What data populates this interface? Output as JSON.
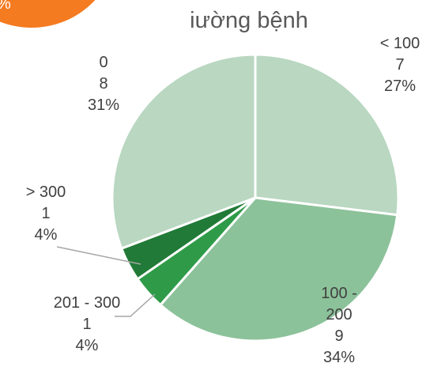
{
  "fragment_text": "%",
  "chart_data": {
    "type": "pie",
    "title": "iường bệnh",
    "categories": [
      "< 100",
      "100 - 200",
      "201 - 300",
      "> 300",
      "0"
    ],
    "values": [
      7,
      9,
      1,
      1,
      8
    ],
    "value_labels": [
      "27%",
      "34%",
      "4%",
      "4%",
      "31%"
    ],
    "colors": [
      "#b9d7c1",
      "#8cc29a",
      "#2f9b48",
      "#217a37",
      "#b9d7c1"
    ]
  }
}
